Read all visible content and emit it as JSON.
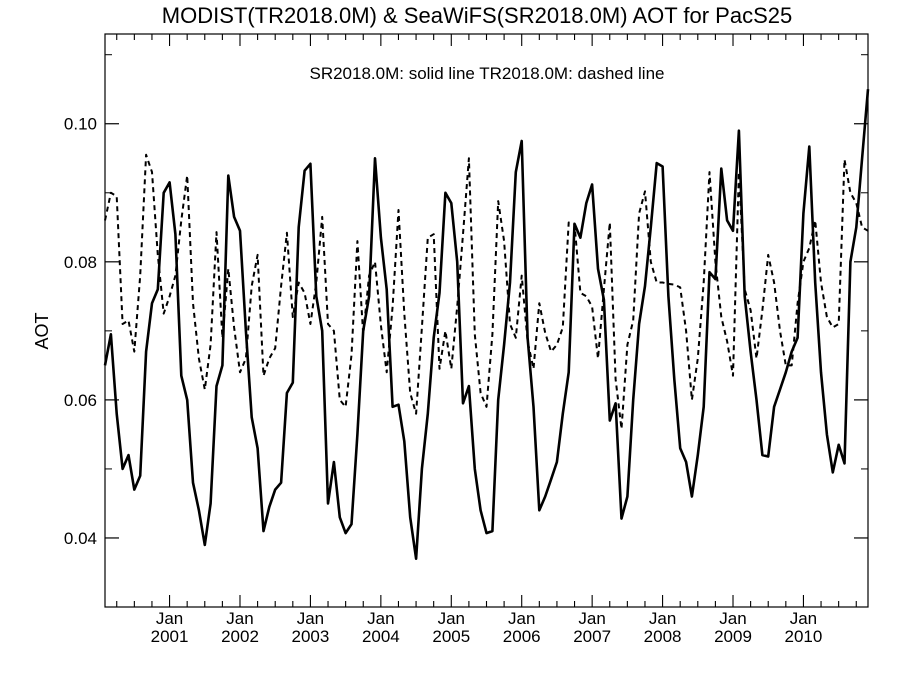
{
  "chart_data": {
    "type": "line",
    "title": "MODIST(TR2018.0M) & SeaWiFS(SR2018.0M)  AOT for PacS25",
    "annotation": "SR2018.0M: solid line   TR2018.0M: dashed line",
    "ylabel": "AOT",
    "xlabel": "",
    "ylim": [
      0.03,
      0.113
    ],
    "y_ticks": [
      "0.04",
      "0.06",
      "0.08",
      "0.10"
    ],
    "x_ticks": [
      {
        "top": "Jan",
        "bottom": "2001"
      },
      {
        "top": "Jan",
        "bottom": "2002"
      },
      {
        "top": "Jan",
        "bottom": "2003"
      },
      {
        "top": "Jan",
        "bottom": "2004"
      },
      {
        "top": "Jan",
        "bottom": "2005"
      },
      {
        "top": "Jan",
        "bottom": "2006"
      },
      {
        "top": "Jan",
        "bottom": "2007"
      },
      {
        "top": "Jan",
        "bottom": "2008"
      },
      {
        "top": "Jan",
        "bottom": "2009"
      },
      {
        "top": "Jan",
        "bottom": "2010"
      }
    ],
    "x_range": [
      "2000-02",
      "2010-12"
    ],
    "grid": false,
    "series": [
      {
        "name": "SR2018.0M",
        "style": "solid",
        "color": "#000000",
        "x": [
          "2000-02",
          "2000-03",
          "2000-04",
          "2000-05",
          "2000-06",
          "2000-07",
          "2000-08",
          "2000-09",
          "2000-10",
          "2000-11",
          "2000-12",
          "2001-01",
          "2001-02",
          "2001-03",
          "2001-04",
          "2001-05",
          "2001-06",
          "2001-07",
          "2001-08",
          "2001-09",
          "2001-10",
          "2001-11",
          "2001-12",
          "2002-01",
          "2002-02",
          "2002-03",
          "2002-04",
          "2002-05",
          "2002-06",
          "2002-07",
          "2002-08",
          "2002-09",
          "2002-10",
          "2002-11",
          "2002-12",
          "2003-01",
          "2003-02",
          "2003-03",
          "2003-04",
          "2003-05",
          "2003-06",
          "2003-07",
          "2003-08",
          "2003-09",
          "2003-10",
          "2003-11",
          "2003-12",
          "2004-01",
          "2004-02",
          "2004-03",
          "2004-04",
          "2004-05",
          "2004-06",
          "2004-07",
          "2004-08",
          "2004-09",
          "2004-10",
          "2004-11",
          "2004-12",
          "2005-01",
          "2005-02",
          "2005-03",
          "2005-04",
          "2005-05",
          "2005-06",
          "2005-07",
          "2005-08",
          "2005-09",
          "2005-10",
          "2005-11",
          "2005-12",
          "2006-01",
          "2006-02",
          "2006-03",
          "2006-04",
          "2006-05",
          "2006-06",
          "2006-07",
          "2006-08",
          "2006-09",
          "2006-10",
          "2006-11",
          "2006-12",
          "2007-01",
          "2007-02",
          "2007-03",
          "2007-04",
          "2007-05",
          "2007-06",
          "2007-07",
          "2007-08",
          "2007-09",
          "2007-10",
          "2007-11",
          "2007-12",
          "2008-01",
          "2008-02",
          "2008-03",
          "2008-04",
          "2008-05",
          "2008-06",
          "2008-07",
          "2008-08",
          "2008-09",
          "2008-10",
          "2008-11",
          "2008-12",
          "2009-01",
          "2009-02",
          "2009-03",
          "2009-04",
          "2009-05",
          "2009-06",
          "2009-07",
          "2009-08",
          "2009-09",
          "2009-10",
          "2009-11",
          "2009-12",
          "2010-01",
          "2010-02",
          "2010-03",
          "2010-04",
          "2010-05",
          "2010-06",
          "2010-07",
          "2010-08",
          "2010-09",
          "2010-10",
          "2010-11",
          "2010-12"
        ],
        "y": [
          0.065,
          0.0695,
          0.058,
          0.05,
          0.052,
          0.047,
          0.049,
          0.067,
          0.074,
          0.076,
          0.09,
          0.0915,
          0.084,
          0.0635,
          0.06,
          0.048,
          0.044,
          0.039,
          0.045,
          0.062,
          0.065,
          0.0925,
          0.0865,
          0.0845,
          0.07,
          0.0575,
          0.053,
          0.041,
          0.0445,
          0.047,
          0.048,
          0.061,
          0.0625,
          0.085,
          0.0932,
          0.0942,
          0.075,
          0.07,
          0.045,
          0.051,
          0.043,
          0.0407,
          0.042,
          0.055,
          0.07,
          0.075,
          0.095,
          0.0835,
          0.076,
          0.059,
          0.0593,
          0.054,
          0.043,
          0.037,
          0.05,
          0.058,
          0.069,
          0.0755,
          0.09,
          0.0885,
          0.08,
          0.0595,
          0.062,
          0.05,
          0.044,
          0.0407,
          0.041,
          0.06,
          0.068,
          0.077,
          0.093,
          0.0975,
          0.069,
          0.059,
          0.044,
          0.046,
          0.0485,
          0.051,
          0.058,
          0.064,
          0.0855,
          0.0835,
          0.0885,
          0.0912,
          0.079,
          0.0745,
          0.057,
          0.0595,
          0.0428,
          0.046,
          0.06,
          0.071,
          0.0765,
          0.085,
          0.0943,
          0.0938,
          0.075,
          0.063,
          0.053,
          0.051,
          0.046,
          0.052,
          0.059,
          0.0785,
          0.0775,
          0.0935,
          0.086,
          0.0845,
          0.099,
          0.075,
          0.067,
          0.06,
          0.052,
          0.0518,
          0.059,
          0.0615,
          0.064,
          0.067,
          0.069,
          0.087,
          0.0967,
          0.077,
          0.064,
          0.055,
          0.0495,
          0.0535,
          0.0508,
          0.08,
          0.085,
          0.095,
          0.105
        ]
      },
      {
        "name": "TR2018.0M",
        "style": "dashed",
        "color": "#000000",
        "x": [
          "2000-02",
          "2000-03",
          "2000-04",
          "2000-05",
          "2000-06",
          "2000-07",
          "2000-08",
          "2000-09",
          "2000-10",
          "2000-11",
          "2000-12",
          "2001-01",
          "2001-02",
          "2001-03",
          "2001-04",
          "2001-05",
          "2001-06",
          "2001-07",
          "2001-08",
          "2001-09",
          "2001-10",
          "2001-11",
          "2001-12",
          "2002-01",
          "2002-02",
          "2002-03",
          "2002-04",
          "2002-05",
          "2002-06",
          "2002-07",
          "2002-08",
          "2002-09",
          "2002-10",
          "2002-11",
          "2002-12",
          "2003-01",
          "2003-02",
          "2003-03",
          "2003-04",
          "2003-05",
          "2003-06",
          "2003-07",
          "2003-08",
          "2003-09",
          "2003-10",
          "2003-11",
          "2003-12",
          "2004-01",
          "2004-02",
          "2004-03",
          "2004-04",
          "2004-05",
          "2004-06",
          "2004-07",
          "2004-08",
          "2004-09",
          "2004-10",
          "2004-11",
          "2004-12",
          "2005-01",
          "2005-02",
          "2005-03",
          "2005-04",
          "2005-05",
          "2005-06",
          "2005-07",
          "2005-08",
          "2005-09",
          "2005-10",
          "2005-11",
          "2005-12",
          "2006-01",
          "2006-02",
          "2006-03",
          "2006-04",
          "2006-05",
          "2006-06",
          "2006-07",
          "2006-08",
          "2006-09",
          "2006-10",
          "2006-11",
          "2006-12",
          "2007-01",
          "2007-02",
          "2007-03",
          "2007-04",
          "2007-05",
          "2007-06",
          "2007-07",
          "2007-08",
          "2007-09",
          "2007-10",
          "2007-11",
          "2007-12",
          "2008-01",
          "2008-02",
          "2008-03",
          "2008-04",
          "2008-05",
          "2008-06",
          "2008-07",
          "2008-08",
          "2008-09",
          "2008-10",
          "2008-11",
          "2008-12",
          "2009-01",
          "2009-02",
          "2009-03",
          "2009-04",
          "2009-05",
          "2009-06",
          "2009-07",
          "2009-08",
          "2009-09",
          "2009-10",
          "2009-11",
          "2009-12",
          "2010-01",
          "2010-02",
          "2010-03",
          "2010-04",
          "2010-05",
          "2010-06",
          "2010-07",
          "2010-08",
          "2010-09",
          "2010-10",
          "2010-11",
          "2010-12"
        ],
        "y": [
          0.086,
          0.09,
          0.0895,
          0.071,
          0.0715,
          0.067,
          0.078,
          0.0955,
          0.093,
          0.081,
          0.0725,
          0.075,
          0.078,
          0.086,
          0.0925,
          0.074,
          0.066,
          0.0615,
          0.068,
          0.0843,
          0.069,
          0.079,
          0.0705,
          0.064,
          0.066,
          0.0765,
          0.081,
          0.0635,
          0.066,
          0.0675,
          0.0765,
          0.0842,
          0.072,
          0.077,
          0.0755,
          0.071,
          0.077,
          0.0865,
          0.071,
          0.07,
          0.06,
          0.059,
          0.0665,
          0.083,
          0.0695,
          0.078,
          0.08,
          0.0708,
          0.064,
          0.0735,
          0.0875,
          0.0725,
          0.061,
          0.058,
          0.0705,
          0.0835,
          0.084,
          0.0645,
          0.07,
          0.0645,
          0.0735,
          0.084,
          0.095,
          0.0695,
          0.061,
          0.059,
          0.0695,
          0.0888,
          0.083,
          0.071,
          0.069,
          0.078,
          0.0685,
          0.0645,
          0.074,
          0.0697,
          0.067,
          0.068,
          0.0705,
          0.0857,
          0.0855,
          0.0755,
          0.075,
          0.0735,
          0.066,
          0.076,
          0.0857,
          0.063,
          0.0558,
          0.068,
          0.0715,
          0.087,
          0.0902,
          0.08,
          0.077,
          0.077,
          0.0768,
          0.0767,
          0.0763,
          0.07,
          0.06,
          0.066,
          0.077,
          0.093,
          0.08,
          0.072,
          0.0685,
          0.0635,
          0.093,
          0.076,
          0.073,
          0.066,
          0.073,
          0.081,
          0.077,
          0.07,
          0.065,
          0.065,
          0.074,
          0.08,
          0.082,
          0.086,
          0.077,
          0.072,
          0.0705,
          0.071,
          0.0948,
          0.09,
          0.0885,
          0.085,
          0.0845
        ]
      }
    ]
  }
}
